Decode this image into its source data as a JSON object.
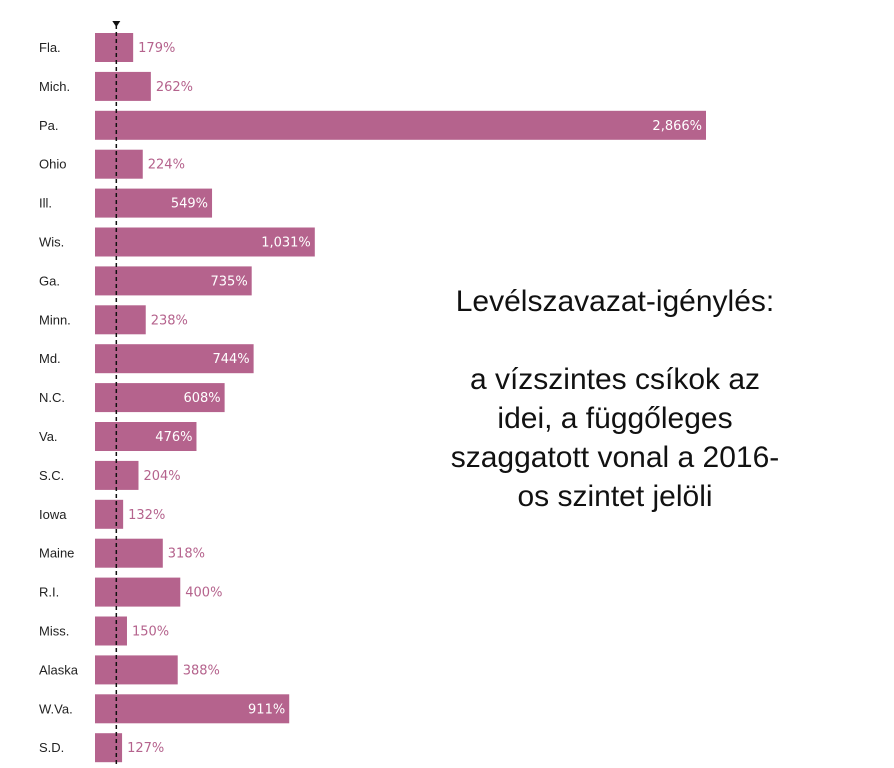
{
  "chart_data": {
    "type": "bar",
    "orientation": "horizontal",
    "categories": [
      "Fla.",
      "Mich.",
      "Pa.",
      "Ohio",
      "Ill.",
      "Wis.",
      "Ga.",
      "Minn.",
      "Md.",
      "N.C.",
      "Va.",
      "S.C.",
      "Iowa",
      "Maine",
      "R.I.",
      "Miss.",
      "Alaska",
      "W.Va.",
      "S.D."
    ],
    "values": [
      179,
      262,
      2866,
      224,
      549,
      1031,
      735,
      238,
      744,
      608,
      476,
      204,
      132,
      318,
      400,
      150,
      388,
      911,
      127
    ],
    "value_labels": [
      "179%",
      "262%",
      "2,866%",
      "224%",
      "549%",
      "1,031%",
      "735%",
      "238%",
      "744%",
      "608%",
      "476%",
      "204%",
      "132%",
      "318%",
      "400%",
      "150%",
      "388%",
      "911%",
      "127%"
    ],
    "reference_value": 100,
    "xlim": [
      0,
      2866
    ],
    "bar_color": "#b5638d",
    "outside_label_color": "#b5638d",
    "inside_label_color": "#ffffff",
    "reference_line_color": "#111111"
  },
  "annotation": {
    "line1": "Levélszavazat-igénylés:",
    "line2": "a vízszintes csíkok az",
    "line3": "idei, a függőleges",
    "line4": "szaggatott vonal a 2016-",
    "line5": "os szintet jelöli"
  }
}
